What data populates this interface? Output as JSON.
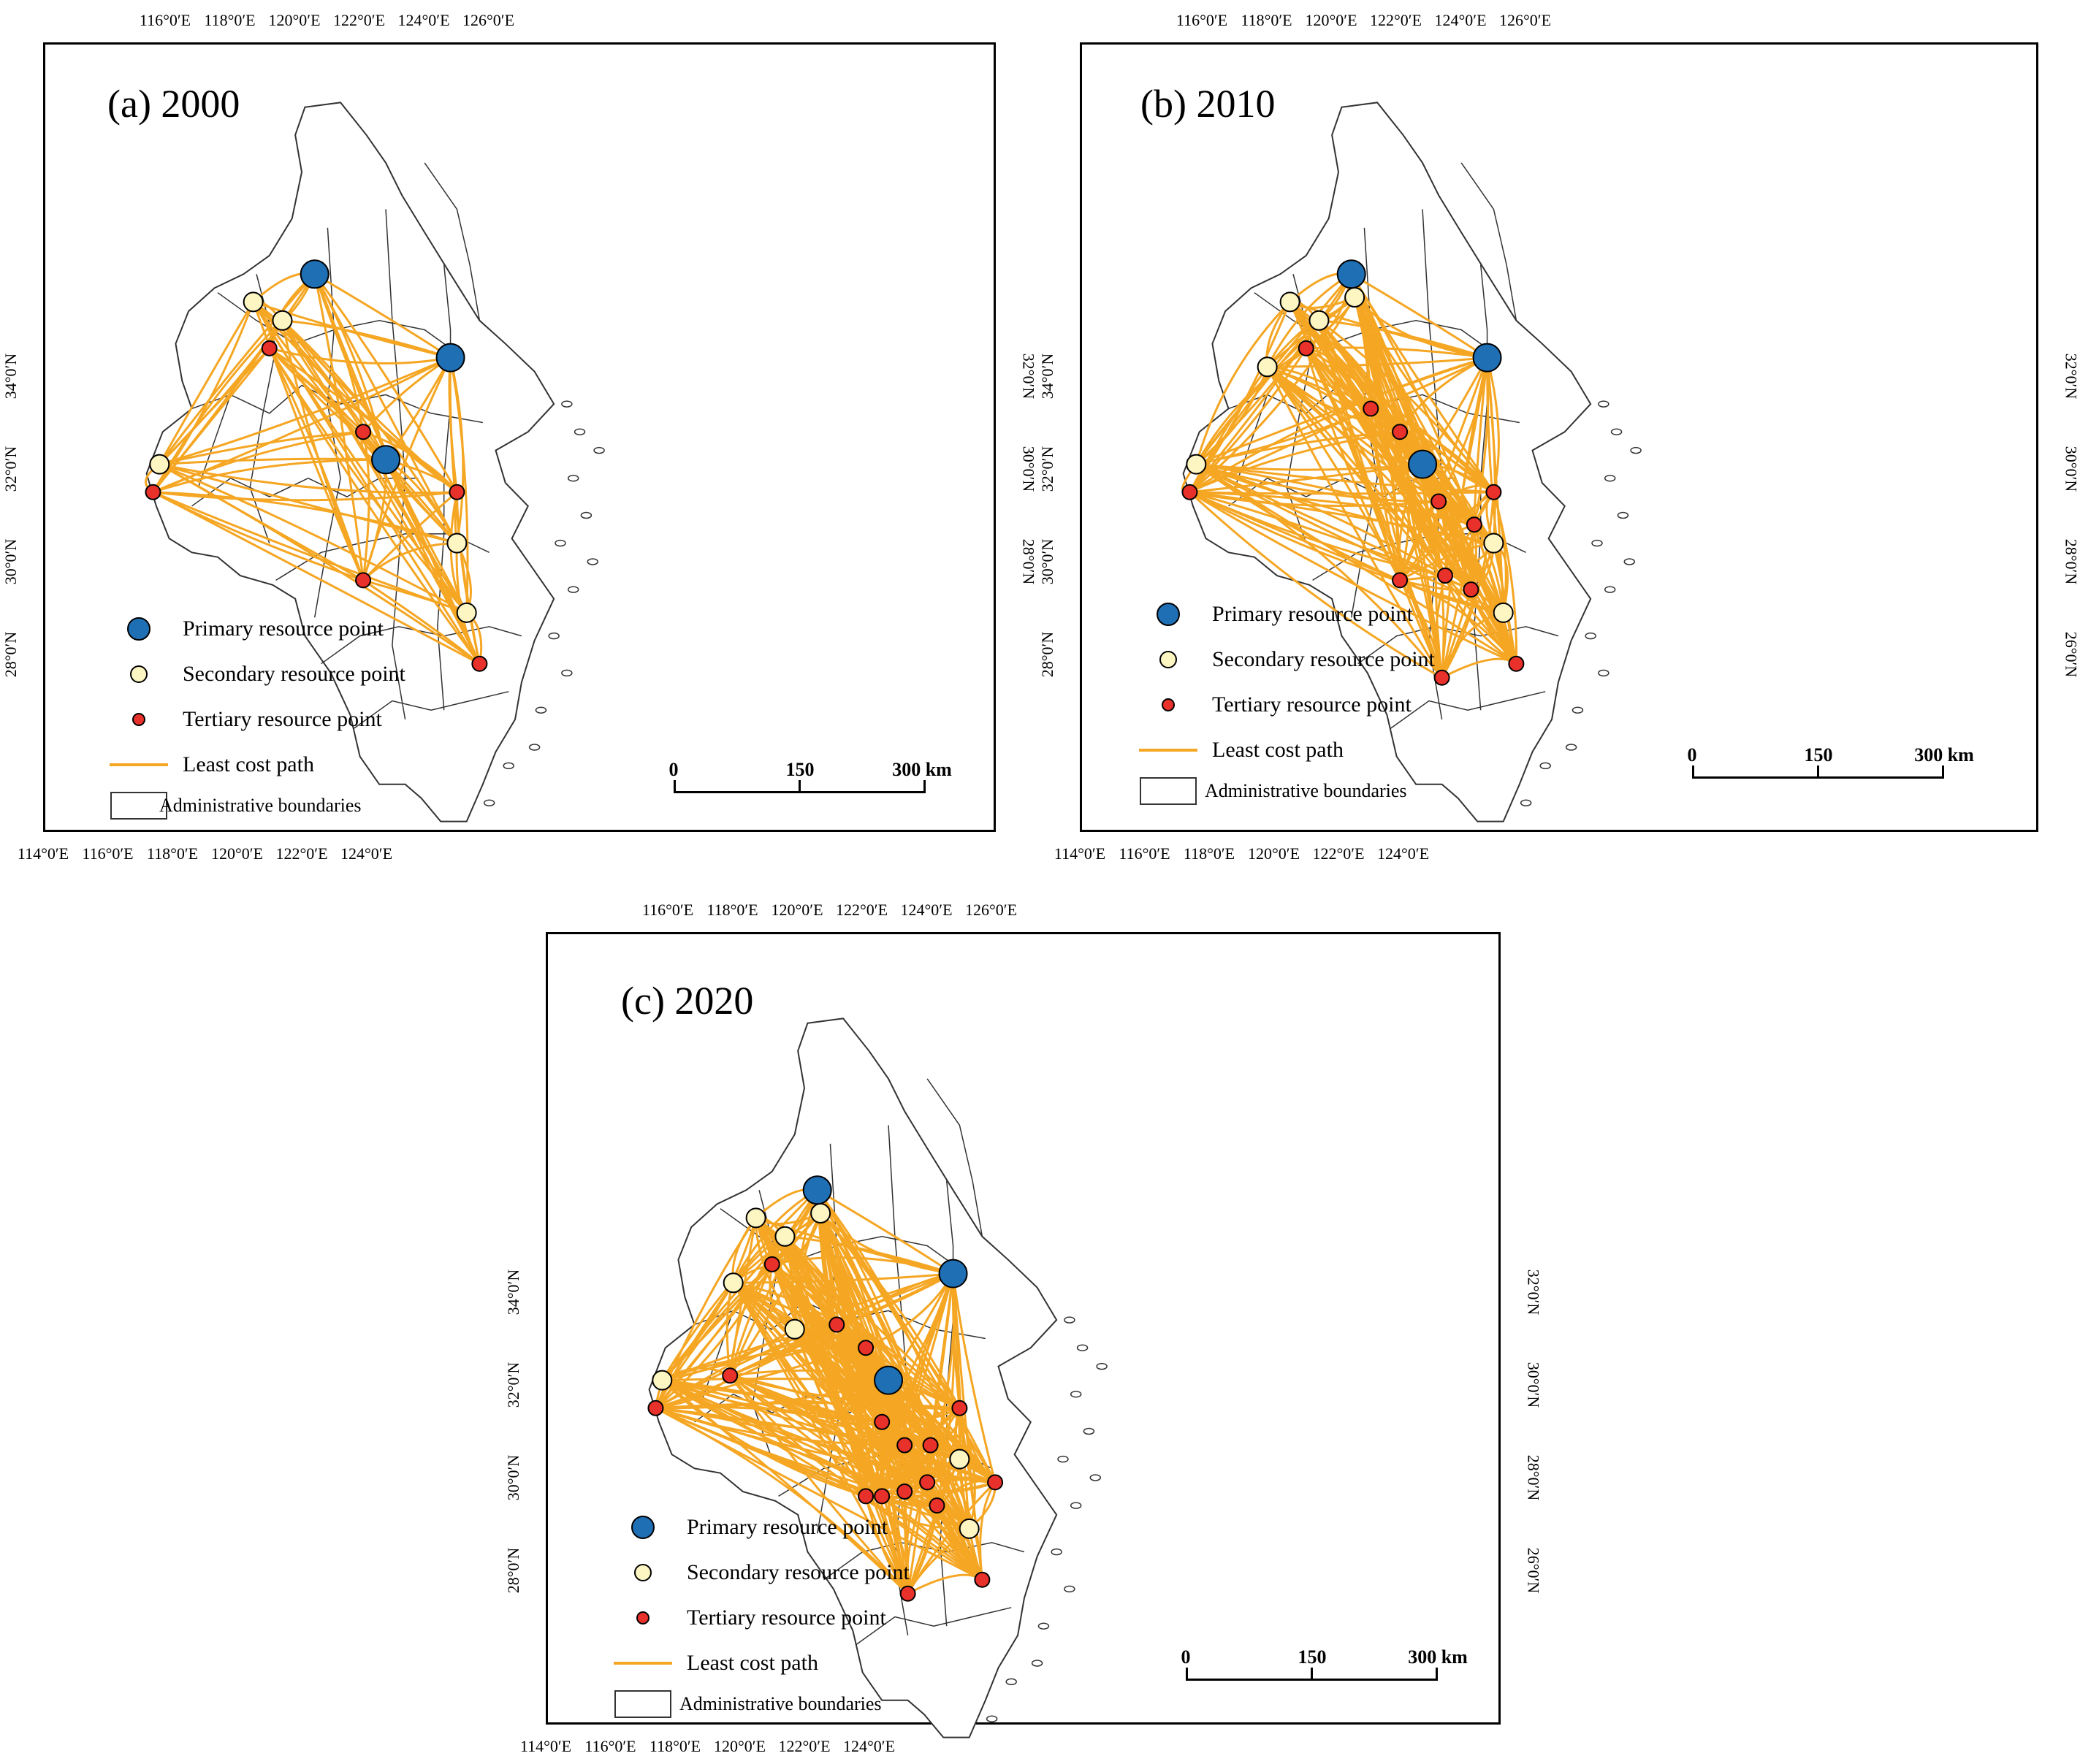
{
  "lon_ticks": [
    "114°0′E",
    "116°0′E",
    "118°0′E",
    "120°0′E",
    "122°0′E",
    "124°0′E",
    "126°0′E"
  ],
  "lat_ticks": [
    "26°0′N",
    "28°0′N",
    "30°0′N",
    "32°0′N",
    "34°0′N"
  ],
  "legend": {
    "primary": "Primary resource point",
    "secondary": "Secondary resource point",
    "tertiary": "Tertiary resource point",
    "path": "Least cost path",
    "boundary": "Administrative boundaries"
  },
  "scale": {
    "zero": "0",
    "mid": "150",
    "end": "300 km"
  },
  "colors": {
    "primary": "#1f6fb5",
    "secondary": "#fdf6c3",
    "tertiary": "#e8312a",
    "path": "#f5a623",
    "boundary": "#333333"
  },
  "panels": [
    {
      "id": "a",
      "title": "(a) 2000",
      "bottom_lon": [
        "114°0′E",
        "116°0′E",
        "118°0′E",
        "120°0′E",
        "122°0′E",
        "124°0′E"
      ],
      "top_lon": [
        "116°0′E",
        "118°0′E",
        "120°0′E",
        "122°0′E",
        "124°0′E",
        "126°0′E"
      ],
      "left_lat": [
        "28°0′N",
        "30°0′N",
        "32°0′N",
        "34°0′N"
      ],
      "right_lat": [
        "28°0′N",
        "30°0′N",
        "32°0′N"
      ],
      "points": {
        "primary": [
          [
            118.2,
            33.1
          ],
          [
            120.3,
            32.2
          ],
          [
            119.3,
            31.1
          ]
        ],
        "secondary": [
          [
            117.25,
            32.8
          ],
          [
            117.7,
            32.6
          ],
          [
            115.8,
            31.05
          ],
          [
            120.4,
            30.2
          ],
          [
            120.55,
            29.45
          ]
        ],
        "tertiary": [
          [
            117.5,
            32.3
          ],
          [
            115.7,
            30.75
          ],
          [
            118.95,
            31.4
          ],
          [
            120.4,
            30.75
          ],
          [
            118.95,
            29.8
          ],
          [
            120.75,
            28.9
          ]
        ]
      }
    },
    {
      "id": "b",
      "title": "(b) 2010",
      "bottom_lon": [
        "114°0′E",
        "116°0′E",
        "118°0′E",
        "120°0′E",
        "122°0′E",
        "124°0′E"
      ],
      "top_lon": [
        "116°0′E",
        "118°0′E",
        "120°0′E",
        "122°0′E",
        "124°0′E",
        "126°0′E"
      ],
      "left_lat": [
        "28°0′N",
        "30°0′N",
        "32°0′N",
        "34°0′N"
      ],
      "right_lat": [
        "26°0′N",
        "28°0′N",
        "30°0′N",
        "32°0′N"
      ],
      "points": {
        "primary": [
          [
            118.2,
            33.1
          ],
          [
            120.3,
            32.2
          ],
          [
            119.3,
            31.05
          ]
        ],
        "secondary": [
          [
            117.25,
            32.8
          ],
          [
            117.7,
            32.6
          ],
          [
            118.25,
            32.85
          ],
          [
            116.9,
            32.1
          ],
          [
            115.8,
            31.05
          ],
          [
            120.4,
            30.2
          ],
          [
            120.55,
            29.45
          ]
        ],
        "tertiary": [
          [
            117.5,
            32.3
          ],
          [
            115.7,
            30.75
          ],
          [
            118.5,
            31.65
          ],
          [
            118.95,
            31.4
          ],
          [
            119.55,
            30.65
          ],
          [
            120.4,
            30.75
          ],
          [
            120.1,
            30.4
          ],
          [
            119.65,
            29.85
          ],
          [
            118.95,
            29.8
          ],
          [
            120.05,
            29.7
          ],
          [
            119.6,
            28.75
          ],
          [
            120.75,
            28.9
          ]
        ]
      }
    },
    {
      "id": "c",
      "title": "(c) 2020",
      "bottom_lon": [
        "114°0′E",
        "116°0′E",
        "118°0′E",
        "120°0′E",
        "122°0′E",
        "124°0′E"
      ],
      "top_lon": [
        "116°0′E",
        "118°0′E",
        "120°0′E",
        "122°0′E",
        "124°0′E",
        "126°0′E"
      ],
      "left_lat": [
        "28°0′N",
        "30°0′N",
        "32°0′N",
        "34°0′N"
      ],
      "right_lat": [
        "26°0′N",
        "28°0′N",
        "30°0′N",
        "32°0′N"
      ],
      "points": {
        "primary": [
          [
            118.2,
            33.1
          ],
          [
            120.3,
            32.2
          ],
          [
            119.3,
            31.05
          ]
        ],
        "secondary": [
          [
            117.25,
            32.8
          ],
          [
            117.7,
            32.6
          ],
          [
            118.25,
            32.85
          ],
          [
            116.9,
            32.1
          ],
          [
            117.85,
            31.6
          ],
          [
            115.8,
            31.05
          ],
          [
            120.4,
            30.2
          ],
          [
            120.55,
            29.45
          ]
        ],
        "tertiary": [
          [
            117.5,
            32.3
          ],
          [
            116.85,
            31.1
          ],
          [
            115.7,
            30.75
          ],
          [
            118.5,
            31.65
          ],
          [
            118.95,
            31.4
          ],
          [
            119.2,
            30.6
          ],
          [
            119.55,
            30.35
          ],
          [
            119.95,
            30.35
          ],
          [
            120.4,
            30.75
          ],
          [
            120.95,
            29.95
          ],
          [
            119.2,
            29.8
          ],
          [
            119.55,
            29.85
          ],
          [
            119.9,
            29.95
          ],
          [
            120.05,
            29.7
          ],
          [
            118.95,
            29.8
          ],
          [
            119.6,
            28.75
          ],
          [
            120.75,
            28.9
          ]
        ]
      }
    }
  ]
}
